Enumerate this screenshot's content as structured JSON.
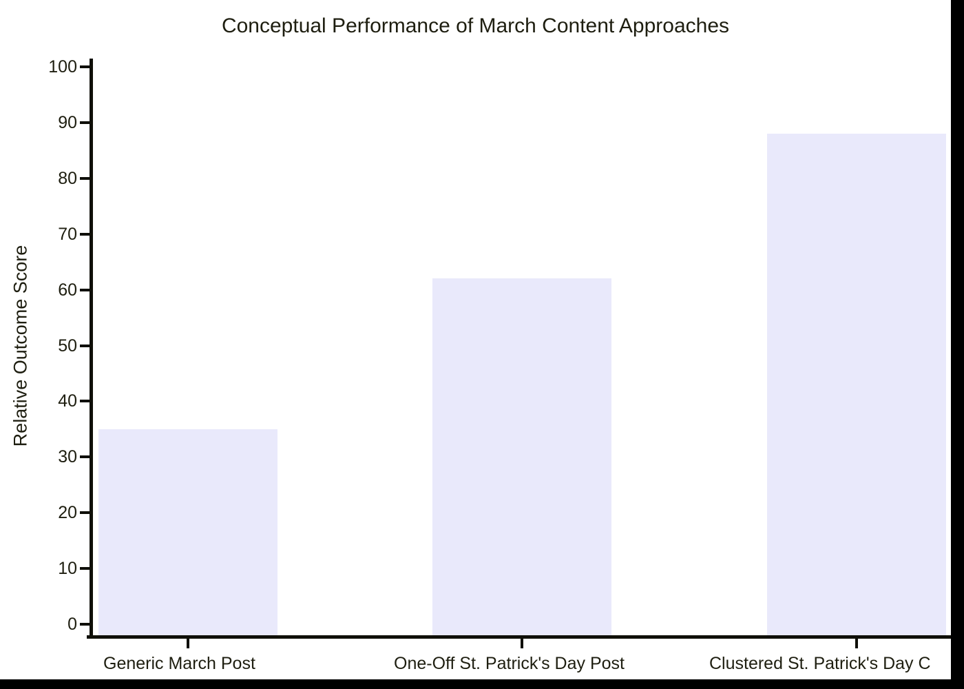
{
  "chart_data": {
    "type": "bar",
    "title": "Conceptual Performance of March Content Approaches",
    "ylabel": "Relative Outcome Score",
    "xlabel": "",
    "categories": [
      "Generic March Post",
      "One-Off St. Patrick's Day Post",
      "Clustered St. Patrick's Day C"
    ],
    "values": [
      35,
      62,
      88
    ],
    "ylim": [
      0,
      100
    ],
    "yticks": [
      0,
      10,
      20,
      30,
      40,
      50,
      60,
      70,
      80,
      90,
      100
    ],
    "grid": false,
    "legend": "none",
    "note_third_label_clipped_at_image_edge": true
  },
  "colors": {
    "bar_fill": "#e9e9fb",
    "text": "#1e1e10",
    "axis": "#0f0f08",
    "chart_background": "#ffffff",
    "frame_background": "#000000"
  }
}
